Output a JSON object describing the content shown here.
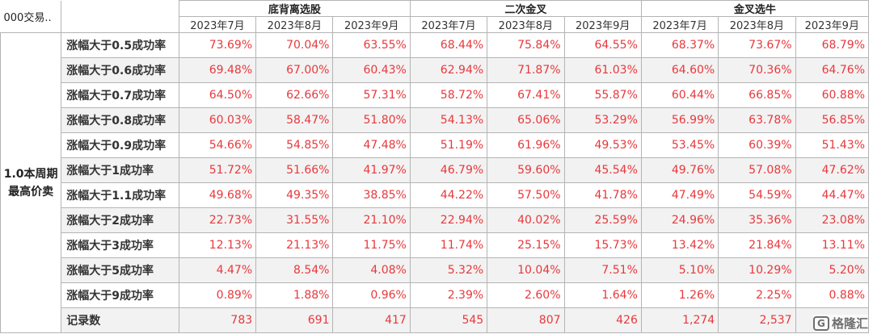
{
  "table": {
    "corner_label": "000交易..",
    "side_label": "1.0本周期最高价卖",
    "groups": [
      "底背离选股",
      "二次金叉",
      "金叉选牛"
    ],
    "months": [
      "2023年7月",
      "2023年8月",
      "2023年9月"
    ],
    "rows": [
      {
        "label": "涨幅大于0.5成功率",
        "values": [
          "73.69%",
          "70.04%",
          "63.55%",
          "68.44%",
          "75.84%",
          "64.55%",
          "68.37%",
          "73.67%",
          "68.79%"
        ]
      },
      {
        "label": "涨幅大于0.6成功率",
        "values": [
          "69.48%",
          "67.00%",
          "60.43%",
          "62.94%",
          "71.87%",
          "61.03%",
          "64.60%",
          "70.36%",
          "64.76%"
        ]
      },
      {
        "label": "涨幅大于0.7成功率",
        "values": [
          "64.50%",
          "62.66%",
          "57.31%",
          "58.72%",
          "67.41%",
          "55.87%",
          "60.44%",
          "66.85%",
          "60.88%"
        ]
      },
      {
        "label": "涨幅大于0.8成功率",
        "values": [
          "60.03%",
          "58.47%",
          "51.80%",
          "54.13%",
          "65.06%",
          "53.29%",
          "56.99%",
          "63.78%",
          "56.85%"
        ]
      },
      {
        "label": "涨幅大于0.9成功率",
        "values": [
          "54.66%",
          "54.85%",
          "47.48%",
          "51.19%",
          "61.96%",
          "49.53%",
          "53.45%",
          "60.39%",
          "51.43%"
        ]
      },
      {
        "label": "涨幅大于1成功率",
        "values": [
          "51.72%",
          "51.66%",
          "41.97%",
          "46.79%",
          "59.60%",
          "45.54%",
          "49.76%",
          "57.08%",
          "47.62%"
        ]
      },
      {
        "label": "涨幅大于1.1成功率",
        "values": [
          "49.68%",
          "49.35%",
          "38.85%",
          "44.22%",
          "57.50%",
          "41.78%",
          "47.49%",
          "54.59%",
          "44.47%"
        ]
      },
      {
        "label": "涨幅大于2成功率",
        "values": [
          "22.73%",
          "31.55%",
          "21.10%",
          "22.94%",
          "40.02%",
          "25.59%",
          "24.96%",
          "35.36%",
          "23.08%"
        ]
      },
      {
        "label": "涨幅大于3成功率",
        "values": [
          "12.13%",
          "21.13%",
          "11.75%",
          "11.74%",
          "25.15%",
          "15.73%",
          "13.42%",
          "21.84%",
          "13.11%"
        ]
      },
      {
        "label": "涨幅大于5成功率",
        "values": [
          "4.47%",
          "8.54%",
          "4.08%",
          "5.32%",
          "10.04%",
          "7.51%",
          "5.10%",
          "10.29%",
          "5.20%"
        ]
      },
      {
        "label": "涨幅大于9成功率",
        "values": [
          "0.89%",
          "1.88%",
          "0.96%",
          "2.39%",
          "2.60%",
          "1.64%",
          "1.26%",
          "2.25%",
          "0.88%"
        ]
      },
      {
        "label": "记录数",
        "values": [
          "783",
          "691",
          "417",
          "545",
          "807",
          "426",
          "1,274",
          "2,537",
          ""
        ]
      }
    ]
  },
  "watermark": {
    "text": "格隆汇",
    "icon_text": "G",
    "icon": "gelonghui-logo-icon"
  },
  "colors": {
    "value_red": "#e8383c",
    "alt_row_bg": "#f2f2f2",
    "border": "#b4b4b4"
  }
}
